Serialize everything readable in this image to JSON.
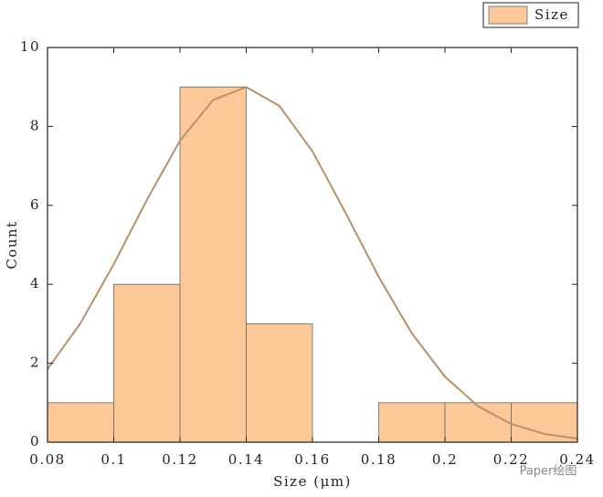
{
  "chart_data": {
    "type": "histogram",
    "x_label": "Size (μm)",
    "y_label": "Count",
    "bins": [
      0.08,
      0.1,
      0.12,
      0.14,
      0.16,
      0.18,
      0.2,
      0.22,
      0.24
    ],
    "series": [
      {
        "name": "Size",
        "color": "#fdc897",
        "values": [
          1,
          4,
          9,
          3,
          0,
          1,
          1,
          1
        ]
      }
    ],
    "curve": {
      "type": "line",
      "color": "#b5926c",
      "x": [
        0.08,
        0.09,
        0.1,
        0.11,
        0.12,
        0.13,
        0.14,
        0.15,
        0.16,
        0.17,
        0.18,
        0.19,
        0.2,
        0.21,
        0.22,
        0.23,
        0.24
      ],
      "values": [
        1.85,
        3.02,
        4.51,
        6.14,
        7.64,
        8.67,
        9.0,
        8.52,
        7.37,
        5.81,
        4.19,
        2.76,
        1.66,
        0.91,
        0.46,
        0.21,
        0.09
      ]
    },
    "xlim": [
      0.08,
      0.24
    ],
    "ylim": [
      0,
      10
    ],
    "xticks": [
      0.08,
      0.1,
      0.12,
      0.14,
      0.16,
      0.18,
      0.2,
      0.22,
      0.24
    ],
    "yticks": [
      0,
      2,
      4,
      6,
      8,
      10
    ],
    "legend": "top-right",
    "annotation": "Paper绘图"
  }
}
